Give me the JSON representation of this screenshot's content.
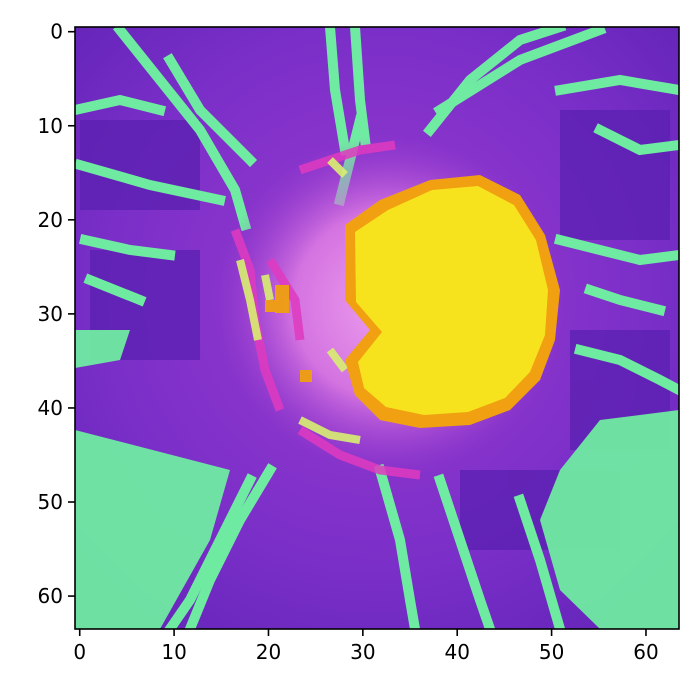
{
  "chart_data": {
    "type": "heatmap",
    "image_grid": {
      "rows": 64,
      "cols": 64
    },
    "xlim": [
      -0.5,
      63.5
    ],
    "ylim": [
      63.5,
      -0.5
    ],
    "x_ticks": [
      0,
      10,
      20,
      30,
      40,
      50,
      60
    ],
    "y_ticks": [
      0,
      10,
      20,
      30,
      40,
      50,
      60
    ],
    "x_tick_labels": [
      "0",
      "10",
      "20",
      "30",
      "40",
      "50",
      "60"
    ],
    "y_tick_labels": [
      "0",
      "10",
      "20",
      "30",
      "40",
      "50",
      "60"
    ],
    "grid": false,
    "title": "",
    "xlabel": "",
    "ylabel": "",
    "description_colors": {
      "background_purple": "#7a2fc8",
      "dark_purple": "#5a1fb0",
      "green_vessels": "#6ff5a0",
      "magenta_ring": "#e03ac0",
      "pink_glow": "#e890e6",
      "yellow_disc": "#f7e21e",
      "orange_edge": "#f0a010"
    }
  }
}
